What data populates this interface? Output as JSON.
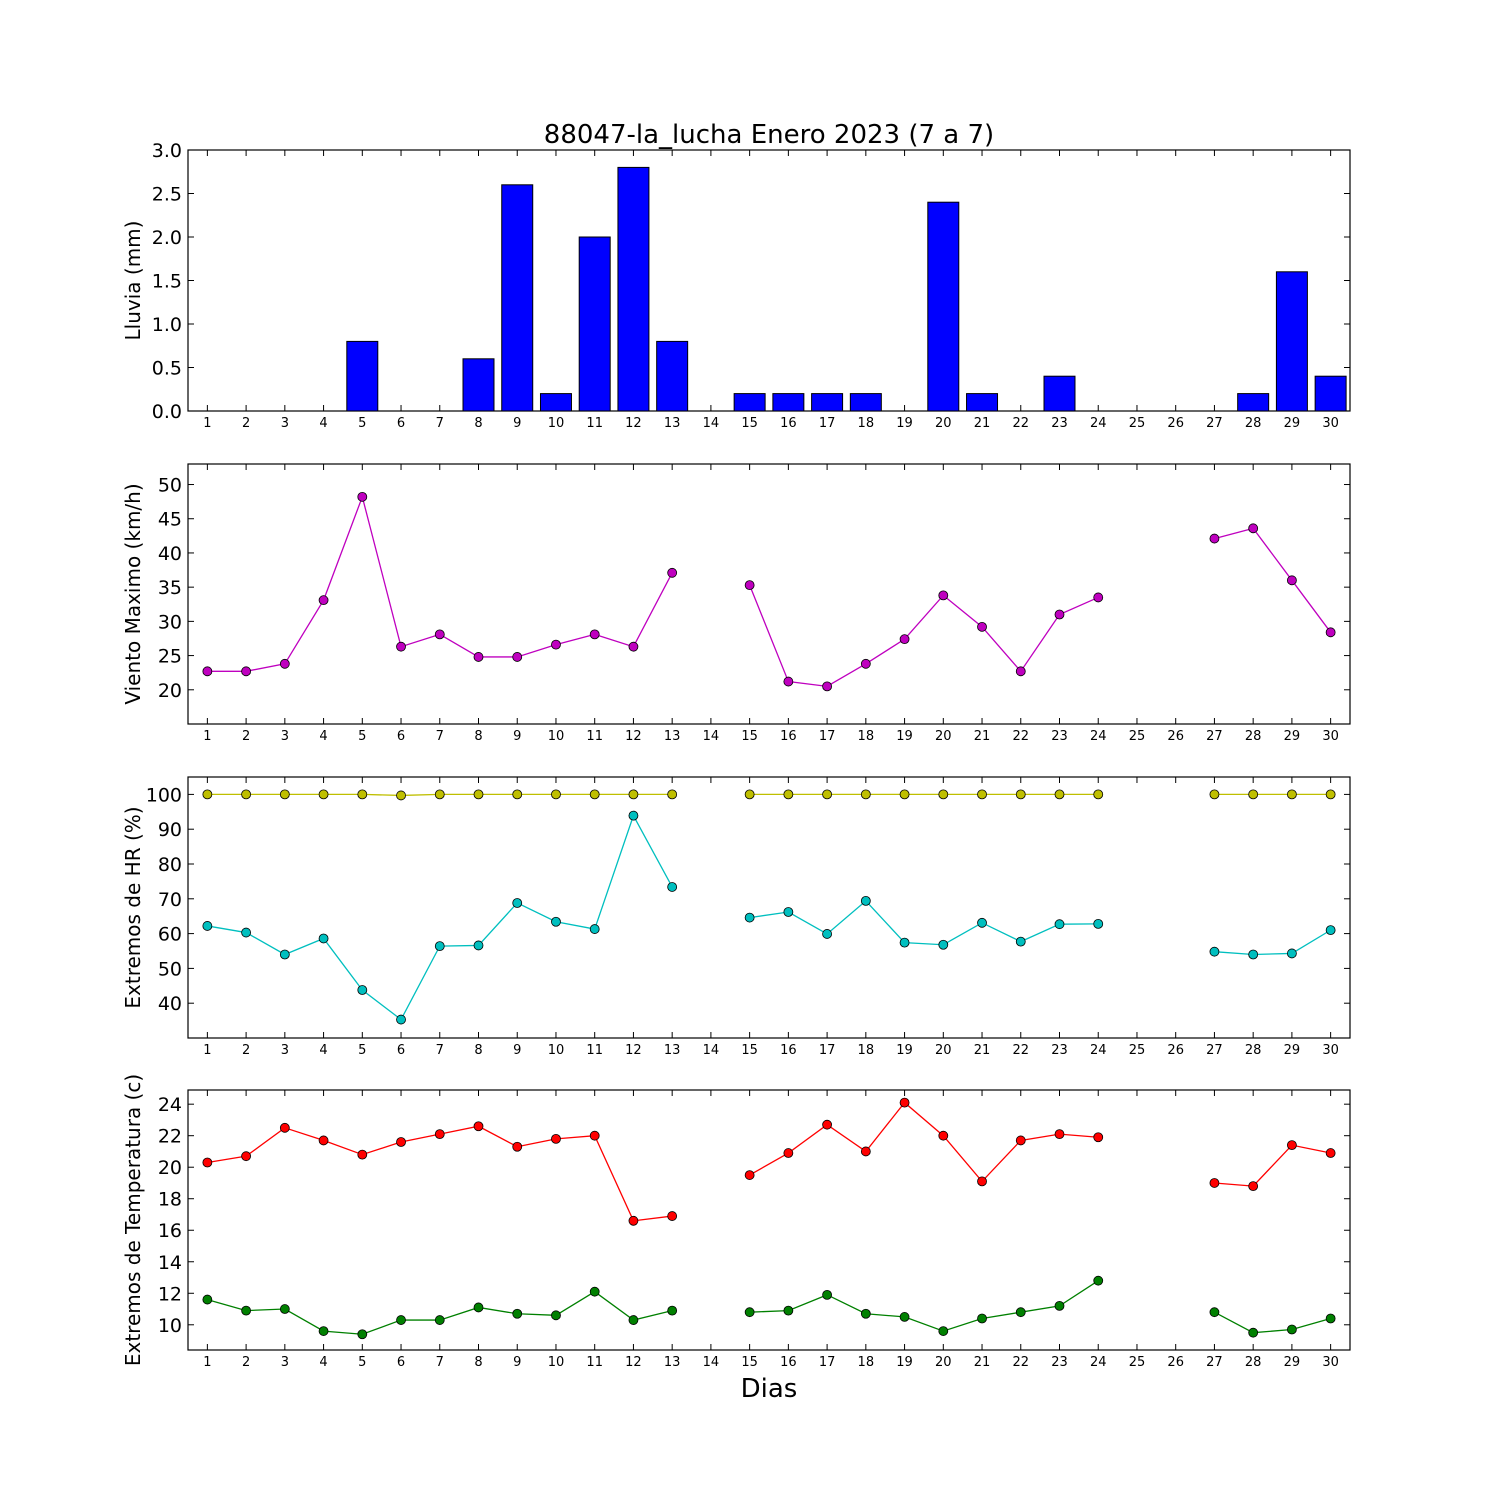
{
  "figure": {
    "title": "88047-la_lucha Enero 2023  (7 a 7)",
    "xlabel": "Dias"
  },
  "chart_data": [
    {
      "type": "bar",
      "ylabel": "Lluvia (mm)",
      "ylim": [
        0,
        3.0
      ],
      "yticks": [
        0.0,
        0.5,
        1.0,
        1.5,
        2.0,
        2.5,
        3.0
      ],
      "ytick_decimals": 1,
      "x": [
        1,
        2,
        3,
        4,
        5,
        6,
        7,
        8,
        9,
        10,
        11,
        12,
        13,
        14,
        15,
        16,
        17,
        18,
        19,
        20,
        21,
        22,
        23,
        24,
        25,
        26,
        27,
        28,
        29,
        30
      ],
      "series": [
        {
          "name": "",
          "color": "#0000ff",
          "values": [
            0,
            0,
            0,
            0,
            0.8,
            0,
            0,
            0.6,
            2.6,
            0.2,
            2.0,
            2.8,
            0.8,
            null,
            0.2,
            0.2,
            0.2,
            0.2,
            0,
            2.4,
            0.2,
            null,
            0.4,
            0,
            0,
            0,
            0,
            0.2,
            1.6,
            0.4
          ]
        }
      ]
    },
    {
      "type": "line",
      "ylabel": "Viento Maximo (km/h)",
      "ylim": [
        15,
        53
      ],
      "yticks": [
        20,
        25,
        30,
        35,
        40,
        45,
        50
      ],
      "ytick_decimals": 0,
      "x": [
        1,
        2,
        3,
        4,
        5,
        6,
        7,
        8,
        9,
        10,
        11,
        12,
        13,
        14,
        15,
        16,
        17,
        18,
        19,
        20,
        21,
        22,
        23,
        24,
        25,
        26,
        27,
        28,
        29,
        30
      ],
      "series": [
        {
          "name": "",
          "color": "#bf00bf",
          "values": [
            22.7,
            22.7,
            23.8,
            33.1,
            48.2,
            26.3,
            28.1,
            24.8,
            24.8,
            26.6,
            28.1,
            26.3,
            37.1,
            null,
            35.3,
            21.2,
            20.5,
            23.8,
            27.4,
            33.8,
            29.2,
            22.7,
            31.0,
            33.5,
            null,
            null,
            42.1,
            43.6,
            36.0,
            28.4
          ]
        }
      ]
    },
    {
      "type": "line",
      "ylabel": "Extremos de HR (%)",
      "ylim": [
        30,
        105
      ],
      "yticks": [
        40,
        50,
        60,
        70,
        80,
        90,
        100
      ],
      "ytick_decimals": 0,
      "x": [
        1,
        2,
        3,
        4,
        5,
        6,
        7,
        8,
        9,
        10,
        11,
        12,
        13,
        14,
        15,
        16,
        17,
        18,
        19,
        20,
        21,
        22,
        23,
        24,
        25,
        26,
        27,
        28,
        29,
        30
      ],
      "series": [
        {
          "name": "",
          "color": "#bfbf00",
          "values": [
            100,
            100,
            100,
            100,
            100,
            99.7,
            100,
            100,
            100,
            100,
            100,
            100,
            100,
            null,
            100,
            100,
            100,
            100,
            100,
            100,
            100,
            100,
            100,
            100,
            null,
            null,
            100,
            100,
            100,
            100
          ]
        },
        {
          "name": "",
          "color": "#00bfbf",
          "values": [
            62.2,
            60.3,
            54.0,
            58.6,
            43.8,
            35.3,
            56.4,
            56.6,
            68.8,
            63.4,
            61.3,
            93.9,
            73.4,
            null,
            64.6,
            66.2,
            59.9,
            69.4,
            57.4,
            56.8,
            63.1,
            57.7,
            62.7,
            62.8,
            null,
            null,
            54.8,
            54.0,
            54.3,
            61.0
          ]
        }
      ]
    },
    {
      "type": "line",
      "ylabel": "Extremos de Temperatura (c)",
      "ylim": [
        8.4,
        24.9
      ],
      "yticks": [
        10,
        12,
        14,
        16,
        18,
        20,
        22,
        24
      ],
      "ytick_decimals": 0,
      "x": [
        1,
        2,
        3,
        4,
        5,
        6,
        7,
        8,
        9,
        10,
        11,
        12,
        13,
        14,
        15,
        16,
        17,
        18,
        19,
        20,
        21,
        22,
        23,
        24,
        25,
        26,
        27,
        28,
        29,
        30
      ],
      "series": [
        {
          "name": "",
          "color": "#ff0000",
          "values": [
            20.3,
            20.7,
            22.5,
            21.7,
            20.8,
            21.6,
            22.1,
            22.6,
            21.3,
            21.8,
            22.0,
            16.6,
            16.9,
            null,
            19.5,
            20.9,
            22.7,
            21.0,
            24.1,
            22.0,
            19.1,
            21.7,
            22.1,
            21.9,
            null,
            null,
            19.0,
            18.8,
            21.4,
            20.9
          ]
        },
        {
          "name": "",
          "color": "#008000",
          "values": [
            11.6,
            10.9,
            11.0,
            9.6,
            9.4,
            10.3,
            10.3,
            11.1,
            10.7,
            10.6,
            12.1,
            10.3,
            10.9,
            null,
            10.8,
            10.9,
            11.9,
            10.7,
            10.5,
            9.6,
            10.4,
            10.8,
            11.2,
            12.8,
            null,
            null,
            10.8,
            9.5,
            9.7,
            10.4
          ]
        }
      ]
    }
  ]
}
